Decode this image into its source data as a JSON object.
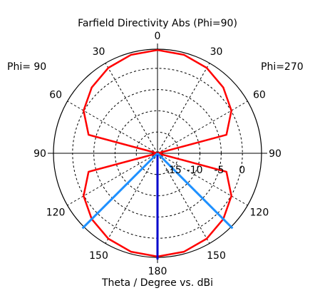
{
  "chart_data": {
    "type": "line",
    "subtype": "polar",
    "title": "Farfield Directivity Abs (Phi=90)",
    "xlabel": "Theta / Degree vs. dBi",
    "side_labels": {
      "left": "Phi= 90",
      "right": "Phi=270"
    },
    "angle_tick_labels": [
      "0",
      "30",
      "60",
      "90",
      "120",
      "150",
      "180",
      "150",
      "120",
      "90",
      "60",
      "30"
    ],
    "radial_tick_labels": [
      "-15",
      "-10",
      "-5",
      "0"
    ],
    "radial_axis": {
      "min_dbi": -20,
      "max_dbi": 4.5,
      "ticks": [
        -15,
        -10,
        -5,
        0
      ]
    },
    "grid": true,
    "series": [
      {
        "color": "#ff0000",
        "theta_deg": [
          0,
          15,
          30,
          45,
          60,
          75,
          90,
          105,
          120,
          135,
          150,
          165,
          180,
          195,
          210,
          225,
          240,
          255,
          270,
          285,
          300,
          315,
          330,
          345,
          360
        ],
        "directivity_dbi": [
          4.3,
          4.0,
          3.2,
          1.9,
          0.1,
          -3.2,
          -20,
          -3.2,
          0.1,
          1.9,
          3.2,
          4.0,
          4.3,
          4.0,
          3.2,
          1.9,
          0.1,
          -3.2,
          -20,
          -3.2,
          0.1,
          1.9,
          3.2,
          4.0,
          4.3
        ]
      }
    ],
    "markers": [
      {
        "color": "#0000cc",
        "theta_deg": 180
      },
      {
        "color": "#1e90ff",
        "theta_deg": 135
      },
      {
        "color": "#1e90ff",
        "theta_deg": 225
      }
    ]
  }
}
